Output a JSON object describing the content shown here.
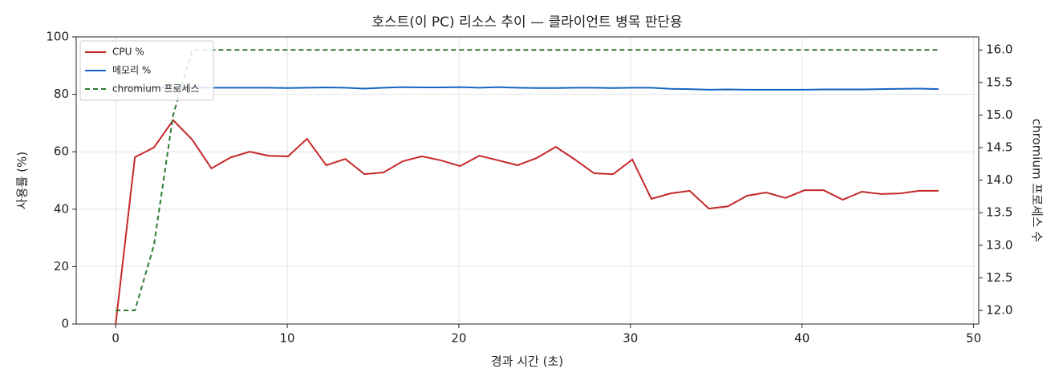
{
  "chart_data": {
    "type": "line",
    "title": "호스트(이 PC) 리소스 추이 — 클라이언트 병목 판단용",
    "x_label": "경과 시간 (초)",
    "y_label": "사용률 (%)",
    "y2_label": "chromium 프로세스 수",
    "x": [
      0,
      1.12,
      2.23,
      3.35,
      4.46,
      5.58,
      6.69,
      7.81,
      8.92,
      10.04,
      11.15,
      12.27,
      13.38,
      14.5,
      15.61,
      16.73,
      17.84,
      18.96,
      20.07,
      21.19,
      22.3,
      23.42,
      24.53,
      25.65,
      26.76,
      27.88,
      28.99,
      30.11,
      31.22,
      32.34,
      33.45,
      34.57,
      35.68,
      36.8,
      37.91,
      39.03,
      40.14,
      41.26,
      42.37,
      43.49,
      44.6,
      45.72,
      46.83,
      47.95
    ],
    "series": [
      {
        "name": "CPU %",
        "color": "#c62828",
        "values": [
          0,
          58.1,
          61.5,
          71,
          64.2,
          54.2,
          58,
          60,
          58.6,
          58.4,
          64.5,
          55.3,
          57.5,
          52.2,
          52.8,
          56.7,
          58.4,
          57,
          55,
          58.6,
          57,
          55.3,
          57.8,
          61.7,
          57.3,
          52.5,
          52.2,
          57.3,
          43.6,
          45.5,
          46.4,
          40.2,
          41,
          44.7,
          45.8,
          43.9,
          46.6,
          46.6,
          43.3,
          46.1,
          45.3,
          45.5,
          46.4,
          46.4
        ]
      },
      {
        "name": "메모리 %",
        "color": "#1565c0",
        "values": [
          82.3,
          82.3,
          82.4,
          82.3,
          82.4,
          82.3,
          82.3,
          82.3,
          82.3,
          82.2,
          82.3,
          82.4,
          82.3,
          82.0,
          82.3,
          82.5,
          82.4,
          82.4,
          82.5,
          82.3,
          82.5,
          82.3,
          82.2,
          82.2,
          82.3,
          82.3,
          82.2,
          82.3,
          82.3,
          81.9,
          81.8,
          81.6,
          81.7,
          81.6,
          81.6,
          81.6,
          81.6,
          81.7,
          81.7,
          81.7,
          81.8,
          81.9,
          82.0,
          81.8
        ]
      },
      {
        "name": "chromium 프로세스",
        "color": "#2e7d32",
        "dashed": true,
        "axis": "y2",
        "values": [
          12,
          12,
          13,
          15,
          16,
          16,
          16,
          16,
          16,
          16,
          16,
          16,
          16,
          16,
          16,
          16,
          16,
          16,
          16,
          16,
          16,
          16,
          16,
          16,
          16,
          16,
          16,
          16,
          16,
          16,
          16,
          16,
          16,
          16,
          16,
          16,
          16,
          16,
          16,
          16,
          16,
          16,
          16,
          16
        ]
      }
    ],
    "xlim": [
      -2.3,
      50.3
    ],
    "xticks": [
      0,
      10,
      20,
      30,
      40,
      50
    ],
    "ylim": [
      0,
      100
    ],
    "yticks": [
      0,
      20,
      40,
      60,
      80,
      100
    ],
    "y2lim": [
      11.79,
      16.2
    ],
    "y2ticks": [
      {
        "value": 12,
        "label": "12.0"
      },
      {
        "value": 12.5,
        "label": "12.5"
      },
      {
        "value": 13,
        "label": "13.0"
      },
      {
        "value": 13.5,
        "label": "13.5"
      },
      {
        "value": 14,
        "label": "14.0"
      },
      {
        "value": 14.5,
        "label": "14.5"
      },
      {
        "value": 15,
        "label": "15.0"
      },
      {
        "value": 15.5,
        "label": "15.5"
      },
      {
        "value": 16,
        "label": "16.0"
      }
    ],
    "grid": true,
    "legend": "upper left"
  }
}
